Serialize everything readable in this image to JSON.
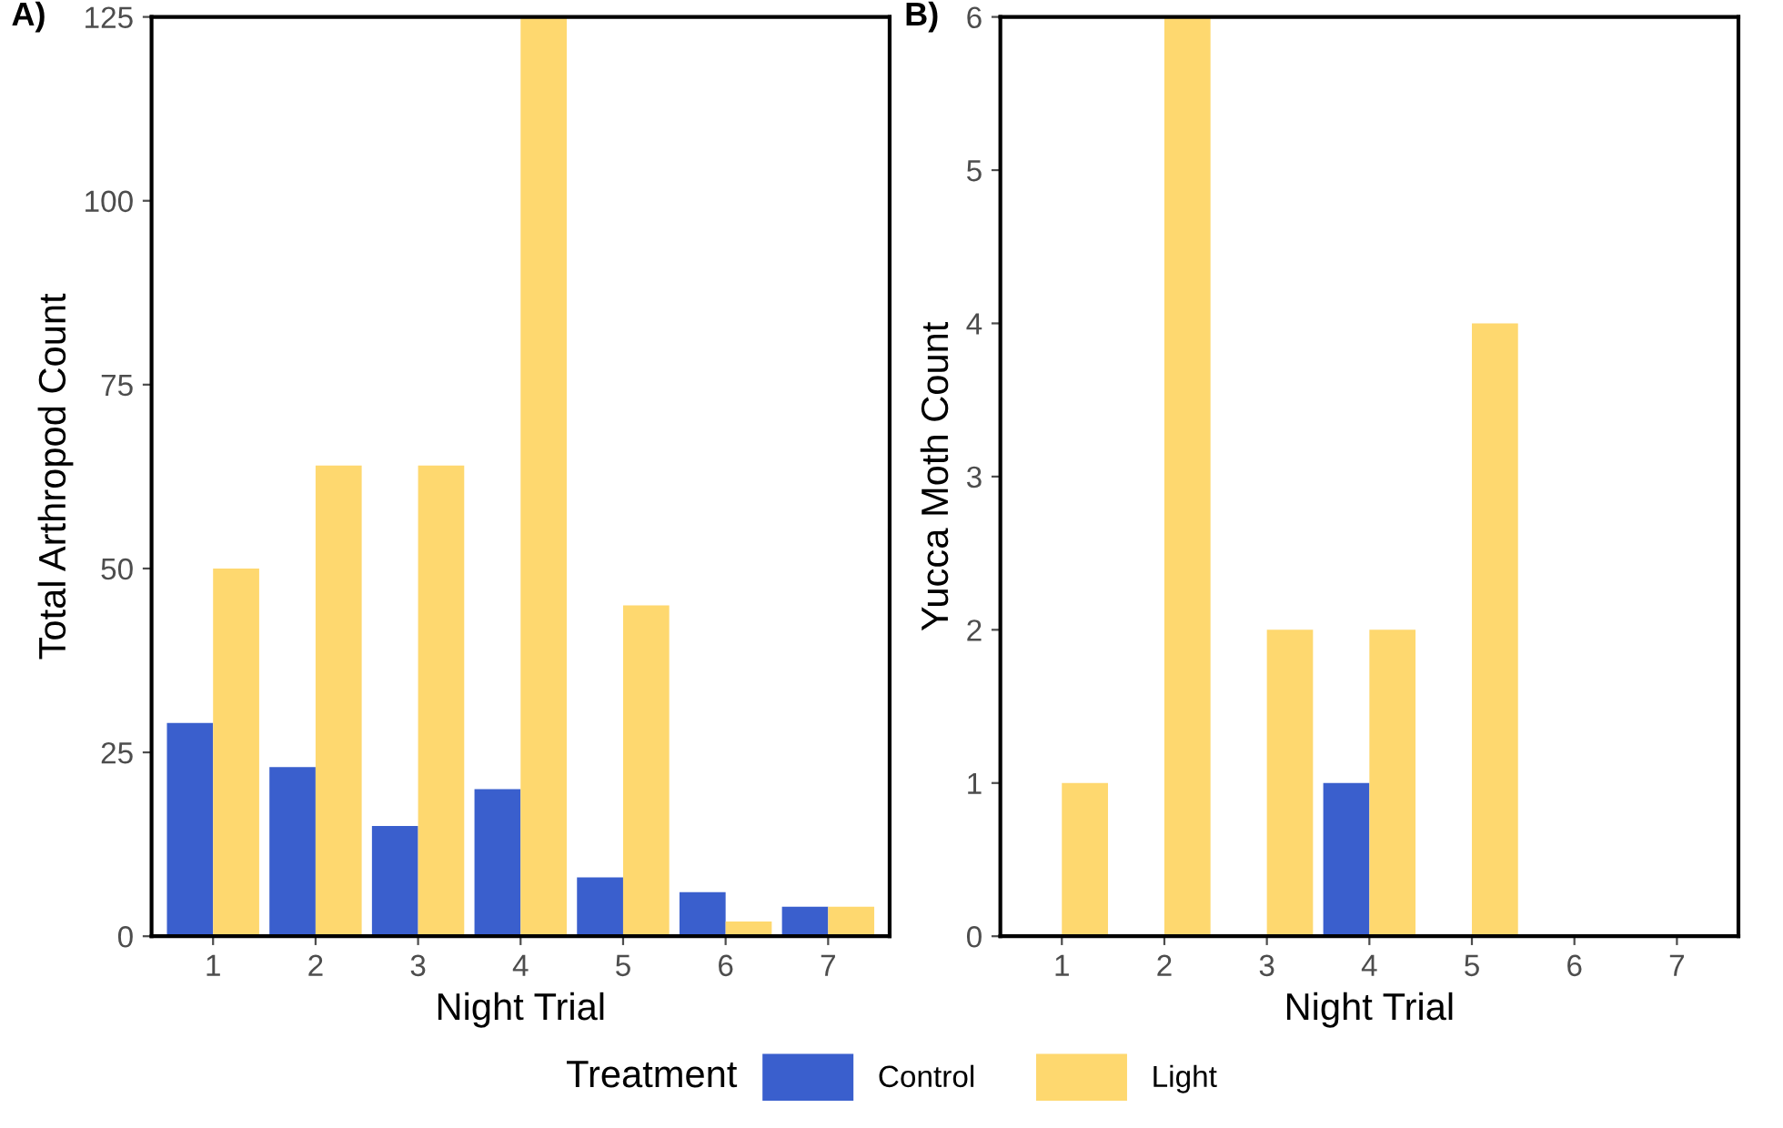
{
  "chart_data": [
    {
      "type": "bar",
      "title": "A)",
      "xlabel": "Night Trial",
      "ylabel": "Total Arthropod Count",
      "categories": [
        "1",
        "2",
        "3",
        "4",
        "5",
        "6",
        "7"
      ],
      "series": [
        {
          "name": "Control",
          "color": "#3a5fcd",
          "values": [
            29,
            23,
            15,
            20,
            8,
            6,
            4
          ]
        },
        {
          "name": "Light",
          "color": "#fed86f",
          "values": [
            50,
            64,
            64,
            125,
            45,
            2,
            4
          ]
        }
      ],
      "ylim": [
        0,
        125
      ],
      "yticks": [
        0,
        25,
        50,
        75,
        100,
        125
      ],
      "grid": false,
      "legend": "bottom",
      "legend_title": "Treatment"
    },
    {
      "type": "bar",
      "title": "B)",
      "xlabel": "Night Trial",
      "ylabel": "Yucca Moth Count",
      "categories": [
        "1",
        "2",
        "3",
        "4",
        "5",
        "6",
        "7"
      ],
      "series": [
        {
          "color": "#3a5fcd",
          "values": [
            0,
            0,
            0,
            1,
            0,
            0,
            0
          ]
        },
        {
          "color": "#fed86f",
          "values": [
            1,
            6,
            2,
            2,
            4,
            0,
            0
          ]
        }
      ],
      "ylim": [
        0,
        6
      ],
      "yticks": [
        0,
        1,
        2,
        3,
        4,
        5,
        6
      ],
      "grid": false
    }
  ]
}
